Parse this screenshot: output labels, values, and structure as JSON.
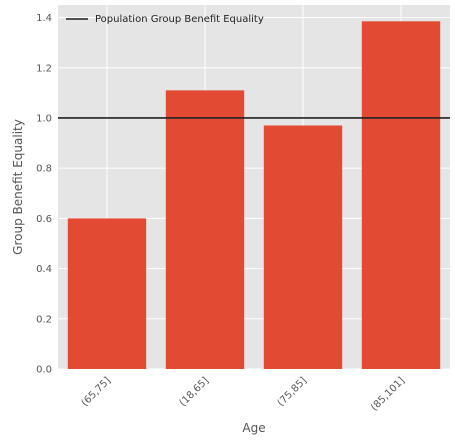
{
  "chart_data": {
    "type": "bar",
    "categories": [
      "(65,75]",
      "(18,65]",
      "(75,85]",
      "(85,101]"
    ],
    "values": [
      0.6,
      1.11,
      0.97,
      1.385
    ],
    "xlabel": "Age",
    "ylabel": "Group Benefit Equality",
    "ylim": [
      0,
      1.45
    ],
    "yticks": [
      "0.0",
      "0.2",
      "0.4",
      "0.6",
      "0.8",
      "1.0",
      "1.2",
      "1.4"
    ],
    "reference_line": {
      "value": 1.0,
      "label": "Population Group Benefit Equality",
      "color": "#222222"
    },
    "bar_color": "#E24A33",
    "background_color": "#E5E5E5",
    "grid": true,
    "legend_position": "top-left"
  }
}
